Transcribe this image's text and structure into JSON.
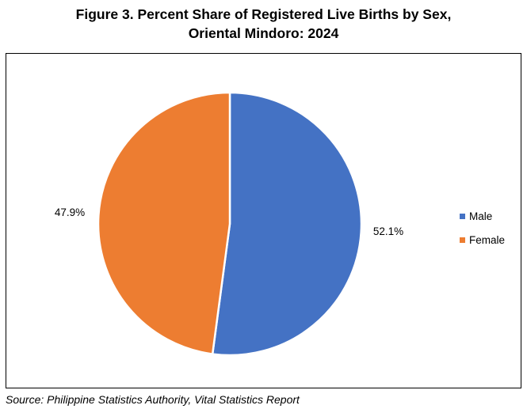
{
  "title": {
    "line1": "Figure 3. Percent Share of Registered Live Births by Sex,",
    "line2": "Oriental Mindoro: 2024"
  },
  "source": "Source: Philippine Statistics Authority, Vital Statistics Report",
  "colors": {
    "male": "#4472C4",
    "female": "#ED7D31",
    "slice_border": "#ffffff"
  },
  "chart_data": {
    "type": "pie",
    "title": "Figure 3. Percent Share of Registered Live Births by Sex, Oriental Mindoro: 2024",
    "categories": [
      "Male",
      "Female"
    ],
    "values": [
      52.1,
      47.9
    ],
    "labels": [
      "52.1%",
      "47.9%"
    ],
    "legend_position": "right",
    "start_angle": "12 o'clock",
    "direction": "clockwise"
  }
}
